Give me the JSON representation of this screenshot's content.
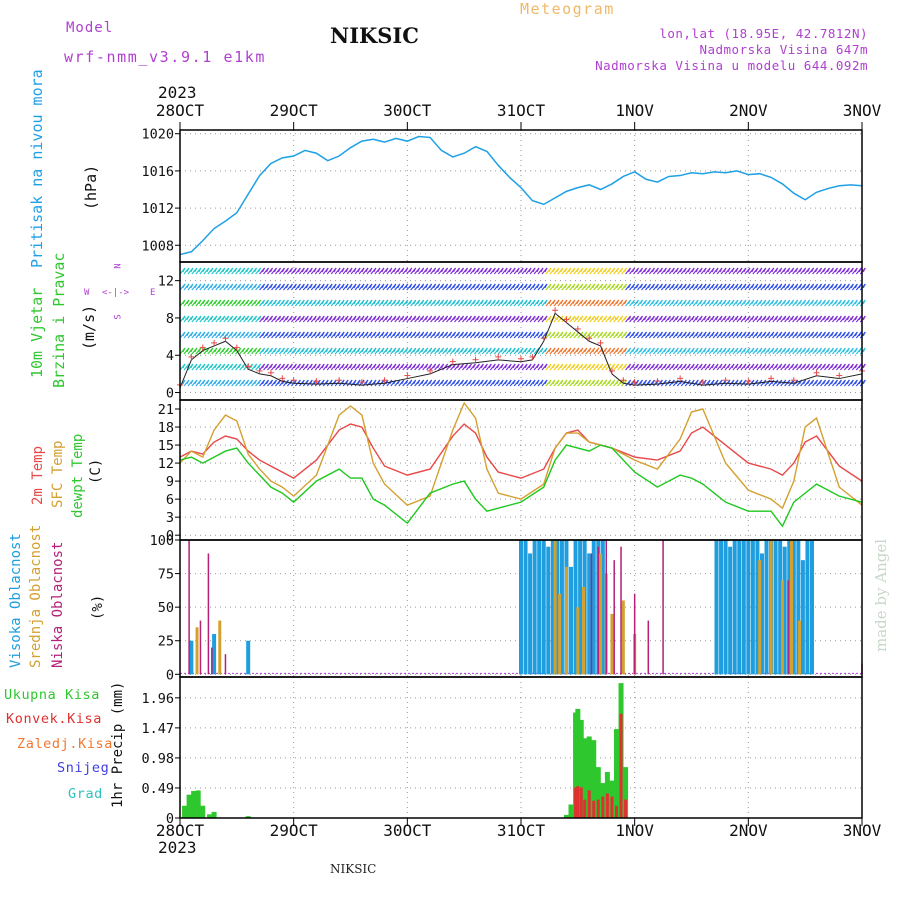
{
  "header": {
    "model_label": "Model",
    "model_name": "wrf-nmm_v3.9.1 e1km",
    "station": "NIKSIC",
    "meteogram_label": "Meteogram",
    "lonlat": "lon,lat (18.95E, 42.7812N)",
    "elevation": "Nadmorska Visina 647m",
    "model_elevation": "Nadmorska Visina u modelu 644.092m",
    "year_top": "2023",
    "year_bottom": "2023",
    "footer_station": "NIKSIC",
    "credit": "made by Angel"
  },
  "colors": {
    "pressure": "#1ea0e6",
    "temp2m": "#e84848",
    "sfc": "#d4a030",
    "dew": "#1ec81e",
    "high_cloud": "#1e9ede",
    "mid_cloud": "#d4a030",
    "low_cloud": "#b4207a",
    "total_precip": "#2ec82e",
    "conv_precip": "#e03030",
    "zaledj": "#f07830",
    "snow": "#4040e0",
    "grad": "#30c0c0",
    "magenta_label": "#b040d0",
    "orange_label": "#f0b868"
  },
  "panels": {
    "pressure": {
      "left": "Pritisak na nivou mora",
      "unit": "(hPa)"
    },
    "wind": {
      "left_1": "10m Vjetar",
      "left_2": "Brzina i Pravac",
      "unit": "(m/s)",
      "compass_n": "N",
      "compass_s": "S",
      "compass_w": "W",
      "compass_e": "E",
      "compass_mid": "<-|->"
    },
    "temp": {
      "l1": "2m Temp",
      "l2": "SFC Temp",
      "l3": "dewpt Temp",
      "unit": "(C)"
    },
    "cloud": {
      "l1": "Visoka Oblacnost",
      "l2": "Srednja Oblacnost",
      "l3": "Niska Oblacnost",
      "unit": "(%)"
    },
    "precip": {
      "l1": "Ukupna Kisa",
      "l2": "Konvek.Kisa",
      "l3": "Zaledj.Kisa",
      "l4": "Snijeg",
      "l5": "Grad",
      "unit": "1hr Precip (mm)"
    }
  },
  "chart_data": [
    {
      "type": "line",
      "title": "",
      "ylabel": "(hPa)",
      "x_categories": [
        "28OCT",
        "29OCT",
        "30OCT",
        "31OCT",
        "1NOV",
        "2NOV",
        "3NOV"
      ],
      "yticks": [
        "1008",
        "1012",
        "1016",
        "1020"
      ],
      "ylim": [
        1006.2,
        1020.4
      ],
      "series": [
        {
          "name": "Pritisak na nivou mora",
          "x": [
            0,
            0.1,
            0.2,
            0.3,
            0.4,
            0.5,
            0.6,
            0.7,
            0.8,
            0.9,
            1.0,
            1.1,
            1.2,
            1.3,
            1.4,
            1.5,
            1.6,
            1.7,
            1.8,
            1.9,
            2.0,
            2.1,
            2.2,
            2.3,
            2.4,
            2.5,
            2.6,
            2.7,
            2.8,
            2.9,
            3.0,
            3.1,
            3.2,
            3.3,
            3.4,
            3.5,
            3.6,
            3.7,
            3.8,
            3.9,
            4.0,
            4.1,
            4.2,
            4.3,
            4.4,
            4.5,
            4.6,
            4.7,
            4.8,
            4.9,
            5.0,
            5.1,
            5.2,
            5.3,
            5.4,
            5.5,
            5.6,
            5.7,
            5.8,
            5.9,
            6.0
          ],
          "y": [
            1007.0,
            1007.3,
            1008.5,
            1009.8,
            1010.6,
            1011.5,
            1013.5,
            1015.5,
            1016.8,
            1017.4,
            1017.6,
            1018.2,
            1017.9,
            1017.1,
            1017.6,
            1018.5,
            1019.2,
            1019.4,
            1019.1,
            1019.5,
            1019.2,
            1019.7,
            1019.6,
            1018.2,
            1017.5,
            1017.9,
            1018.6,
            1018.1,
            1016.6,
            1015.3,
            1014.2,
            1012.8,
            1012.4,
            1013.1,
            1013.8,
            1014.2,
            1014.5,
            1014.0,
            1014.6,
            1015.4,
            1015.9,
            1015.1,
            1014.8,
            1015.4,
            1015.5,
            1015.8,
            1015.7,
            1015.9,
            1015.8,
            1016.0,
            1015.6,
            1015.7,
            1015.3,
            1014.6,
            1013.6,
            1012.9,
            1013.7,
            1014.1,
            1014.4,
            1014.5,
            1014.4
          ]
        }
      ]
    },
    {
      "type": "line",
      "title": "",
      "ylabel": "(m/s)",
      "x_categories": [
        "28OCT",
        "29OCT",
        "30OCT",
        "31OCT",
        "1NOV",
        "2NOV",
        "3NOV"
      ],
      "yticks": [
        "0",
        "4",
        "8",
        "12"
      ],
      "ylim": [
        -0.8,
        14.0
      ],
      "series": [
        {
          "name": "10m Vjetar",
          "x": [
            0,
            0.1,
            0.2,
            0.3,
            0.4,
            0.5,
            0.6,
            0.7,
            0.8,
            0.9,
            1.0,
            1.2,
            1.4,
            1.6,
            1.8,
            2.0,
            2.2,
            2.4,
            2.6,
            2.8,
            3.0,
            3.1,
            3.2,
            3.3,
            3.4,
            3.5,
            3.6,
            3.7,
            3.8,
            3.9,
            4.0,
            4.2,
            4.4,
            4.6,
            4.8,
            5.0,
            5.2,
            5.4,
            5.6,
            5.8,
            6.0
          ],
          "y": [
            0.5,
            3.5,
            4.5,
            5.0,
            5.5,
            4.5,
            2.5,
            2.0,
            1.8,
            1.2,
            1.0,
            0.9,
            1.0,
            0.8,
            1.0,
            1.5,
            2.0,
            3.0,
            3.2,
            3.5,
            3.3,
            3.5,
            5.5,
            8.5,
            7.5,
            6.5,
            5.5,
            5.0,
            2.0,
            1.0,
            0.8,
            0.9,
            1.2,
            0.8,
            1.0,
            0.9,
            1.2,
            1.0,
            1.8,
            1.5,
            2.0
          ]
        }
      ]
    },
    {
      "type": "line",
      "title": "",
      "ylabel": "(C)",
      "x_categories": [
        "28OCT",
        "29OCT",
        "30OCT",
        "31OCT",
        "1NOV",
        "2NOV",
        "3NOV"
      ],
      "yticks": [
        "0",
        "3",
        "6",
        "9",
        "12",
        "15",
        "18",
        "21"
      ],
      "ylim": [
        -0.8,
        22.5
      ],
      "series": [
        {
          "name": "2m Temp",
          "x": [
            0,
            0.1,
            0.2,
            0.3,
            0.4,
            0.5,
            0.6,
            0.7,
            0.8,
            0.9,
            1.0,
            1.2,
            1.4,
            1.5,
            1.6,
            1.7,
            1.8,
            2.0,
            2.2,
            2.4,
            2.5,
            2.6,
            2.7,
            2.8,
            3.0,
            3.2,
            3.3,
            3.4,
            3.5,
            3.6,
            3.7,
            3.8,
            4.0,
            4.2,
            4.4,
            4.5,
            4.6,
            4.8,
            5.0,
            5.2,
            5.3,
            5.4,
            5.5,
            5.6,
            5.8,
            6.0
          ],
          "y": [
            13.0,
            14.0,
            13.5,
            15.5,
            16.5,
            16.0,
            14.0,
            12.5,
            11.5,
            10.5,
            9.5,
            12.5,
            17.5,
            18.5,
            18.0,
            14.5,
            11.5,
            10.0,
            11.0,
            16.5,
            18.5,
            17.0,
            13.0,
            10.5,
            9.5,
            11.0,
            14.5,
            17.0,
            17.5,
            15.5,
            15.0,
            14.5,
            13.0,
            12.5,
            14.0,
            17.0,
            18.0,
            15.0,
            12.0,
            11.0,
            10.0,
            12.0,
            15.5,
            16.5,
            11.5,
            9.0
          ]
        },
        {
          "name": "SFC Temp",
          "x": [
            0,
            0.1,
            0.2,
            0.3,
            0.4,
            0.5,
            0.6,
            0.7,
            0.8,
            0.9,
            1.0,
            1.2,
            1.4,
            1.5,
            1.6,
            1.7,
            1.8,
            2.0,
            2.2,
            2.4,
            2.5,
            2.6,
            2.7,
            2.8,
            3.0,
            3.2,
            3.3,
            3.4,
            3.5,
            3.6,
            3.7,
            3.8,
            4.0,
            4.2,
            4.4,
            4.5,
            4.6,
            4.8,
            5.0,
            5.2,
            5.3,
            5.4,
            5.5,
            5.6,
            5.8,
            6.0
          ],
          "y": [
            12.0,
            14.0,
            13.0,
            17.5,
            20.0,
            19.0,
            13.5,
            11.0,
            9.0,
            8.0,
            6.5,
            10.0,
            20.0,
            21.5,
            20.0,
            12.0,
            8.5,
            5.0,
            6.5,
            17.5,
            22.0,
            19.5,
            11.0,
            7.0,
            6.0,
            8.5,
            14.5,
            17.0,
            17.0,
            15.5,
            15.0,
            14.5,
            12.5,
            11.0,
            16.0,
            20.5,
            21.0,
            12.0,
            7.5,
            6.0,
            4.5,
            9.0,
            18.0,
            19.5,
            8.0,
            5.0
          ]
        },
        {
          "name": "dewpt Temp",
          "x": [
            0,
            0.1,
            0.2,
            0.3,
            0.4,
            0.5,
            0.6,
            0.7,
            0.8,
            0.9,
            1.0,
            1.2,
            1.4,
            1.5,
            1.6,
            1.7,
            1.8,
            2.0,
            2.2,
            2.4,
            2.5,
            2.6,
            2.7,
            2.8,
            3.0,
            3.2,
            3.3,
            3.4,
            3.5,
            3.6,
            3.7,
            3.8,
            4.0,
            4.2,
            4.4,
            4.5,
            4.6,
            4.8,
            5.0,
            5.2,
            5.3,
            5.4,
            5.5,
            5.6,
            5.8,
            6.0
          ],
          "y": [
            12.5,
            13.0,
            12.0,
            13.0,
            14.0,
            14.5,
            12.0,
            10.0,
            8.0,
            7.0,
            5.5,
            9.0,
            11.0,
            9.5,
            9.5,
            6.0,
            5.0,
            2.0,
            7.0,
            8.5,
            9.0,
            6.0,
            4.0,
            4.5,
            5.5,
            8.0,
            12.5,
            15.0,
            14.5,
            14.0,
            15.0,
            14.5,
            10.5,
            8.0,
            10.0,
            9.5,
            8.5,
            5.5,
            4.0,
            4.0,
            1.5,
            5.5,
            7.0,
            8.5,
            6.5,
            5.5
          ]
        }
      ]
    },
    {
      "type": "bar",
      "title": "",
      "ylabel": "(%)",
      "x_categories": [
        "28OCT",
        "29OCT",
        "30OCT",
        "31OCT",
        "1NOV",
        "2NOV",
        "3NOV"
      ],
      "yticks": [
        "0",
        "25",
        "50",
        "75",
        "100"
      ],
      "ylim": [
        -2,
        100
      ],
      "series": [
        {
          "name": "Visoka Oblacnost",
          "x": [
            0.1,
            0.3,
            0.6,
            3.0,
            3.04,
            3.08,
            3.12,
            3.16,
            3.2,
            3.24,
            3.28,
            3.32,
            3.36,
            3.4,
            3.44,
            3.48,
            3.52,
            3.56,
            3.6,
            3.64,
            3.68,
            3.72,
            4.72,
            4.76,
            4.8,
            4.84,
            4.88,
            4.92,
            4.96,
            5.0,
            5.04,
            5.08,
            5.12,
            5.16,
            5.2,
            5.24,
            5.28,
            5.32,
            5.36,
            5.4,
            5.44,
            5.48,
            5.52,
            5.56
          ],
          "values": [
            25,
            30,
            25,
            100,
            100,
            90,
            100,
            100,
            100,
            95,
            100,
            100,
            100,
            100,
            80,
            100,
            100,
            100,
            90,
            100,
            100,
            100,
            100,
            100,
            100,
            95,
            100,
            100,
            100,
            100,
            100,
            100,
            90,
            100,
            100,
            100,
            100,
            95,
            100,
            100,
            100,
            85,
            100,
            100
          ]
        },
        {
          "name": "Srednja Oblacnost",
          "x": [
            0.15,
            0.35,
            3.3,
            3.34,
            3.4,
            3.5,
            3.55,
            3.7,
            3.75,
            3.8,
            3.9,
            4.0,
            5.1,
            5.2,
            5.3,
            5.38,
            5.45
          ],
          "values": [
            35,
            40,
            100,
            60,
            80,
            50,
            65,
            90,
            75,
            45,
            55,
            30,
            85,
            100,
            70,
            100,
            40
          ]
        },
        {
          "name": "Niska Oblacnost",
          "x": [
            0.08,
            0.18,
            0.25,
            0.28,
            0.4,
            3.62,
            3.68,
            3.75,
            3.82,
            3.88,
            4.0,
            4.12,
            4.25,
            5.35,
            6.0
          ],
          "values": [
            100,
            40,
            90,
            20,
            15,
            90,
            95,
            100,
            85,
            95,
            60,
            40,
            100,
            70,
            8
          ]
        }
      ]
    },
    {
      "type": "bar",
      "title": "",
      "ylabel": "1hr Precip (mm)",
      "x_categories": [
        "28OCT",
        "29OCT",
        "30OCT",
        "31OCT",
        "1NOV",
        "2NOV",
        "3NOV"
      ],
      "yticks": [
        "0",
        "0.49",
        "0.98",
        "1.47",
        "1.96"
      ],
      "ylim": [
        0,
        2.3
      ],
      "series": [
        {
          "name": "Ukupna Kisa",
          "x": [
            0.04,
            0.08,
            0.12,
            0.16,
            0.2,
            0.26,
            0.3,
            0.6,
            3.4,
            3.44,
            3.48,
            3.5,
            3.53,
            3.56,
            3.6,
            3.64,
            3.68,
            3.72,
            3.76,
            3.8,
            3.84,
            3.88,
            3.92
          ],
          "values": [
            0.2,
            0.38,
            0.44,
            0.45,
            0.2,
            0.06,
            0.1,
            0.03,
            0.05,
            0.22,
            1.72,
            1.78,
            1.6,
            1.3,
            1.33,
            1.27,
            0.83,
            0.57,
            0.75,
            0.61,
            1.45,
            2.2,
            0.83
          ]
        },
        {
          "name": "Konvek.Kisa",
          "x": [
            3.48,
            3.5,
            3.53,
            3.56,
            3.6,
            3.64,
            3.68,
            3.72,
            3.76,
            3.8,
            3.84,
            3.88,
            3.92
          ],
          "values": [
            0.5,
            0.52,
            0.5,
            0.3,
            0.45,
            0.28,
            0.3,
            0.35,
            0.4,
            0.35,
            0.2,
            1.7,
            0.3
          ]
        }
      ]
    }
  ]
}
